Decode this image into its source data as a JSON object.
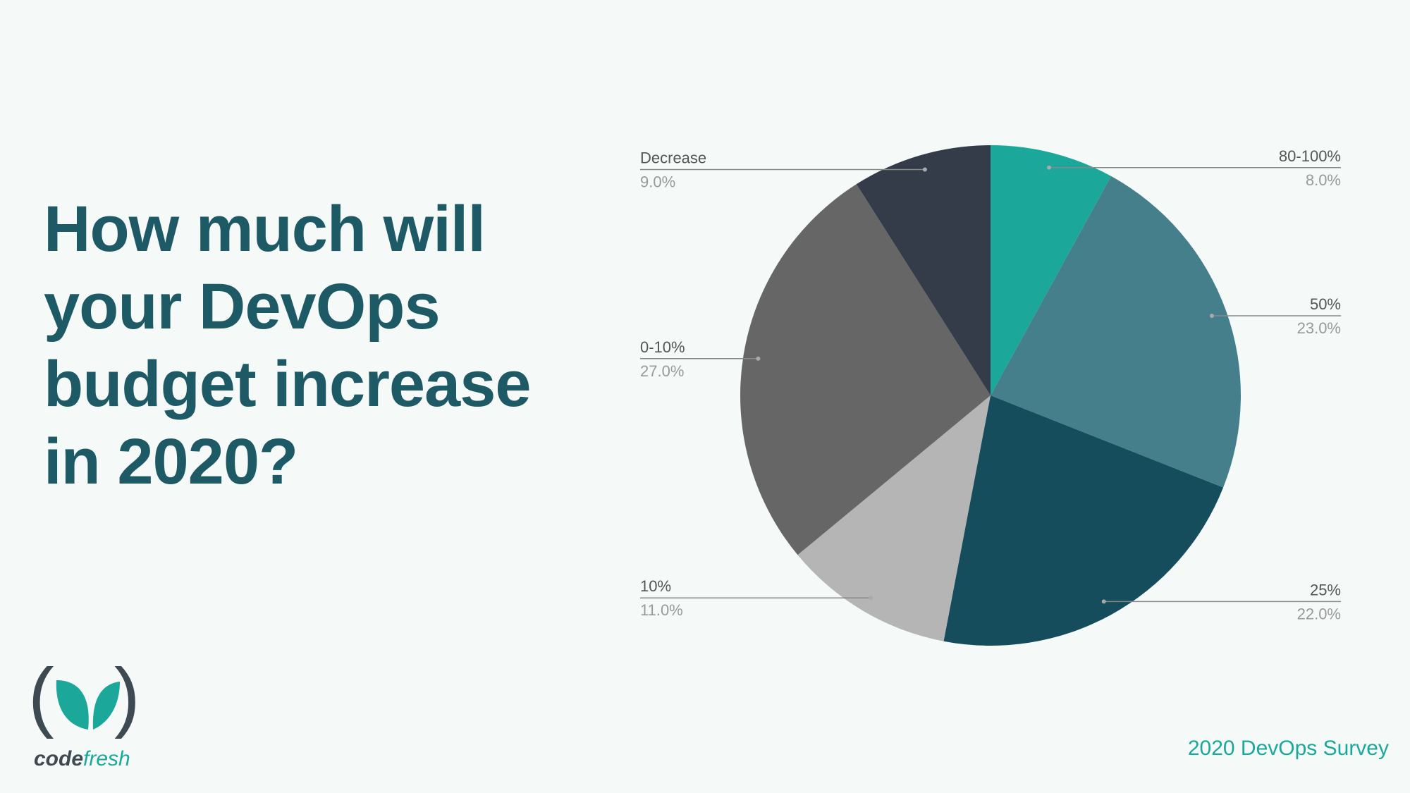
{
  "title": "How much will your DevOps budget increase in 2020?",
  "footer": "2020 DevOps Survey",
  "logo": {
    "part1": "code",
    "part2": "fresh"
  },
  "chart_data": {
    "type": "pie",
    "categories": [
      "80-100%",
      "50%",
      "25%",
      "10%",
      "0-10%",
      "Decrease"
    ],
    "values": [
      8,
      23,
      22,
      11,
      27,
      9
    ],
    "value_labels": [
      "8.0%",
      "23.0%",
      "22.0%",
      "11.0%",
      "27.0%",
      "9.0%"
    ],
    "colors": [
      "#1ba89a",
      "#467f8c",
      "#154d5c",
      "#b5b5b5",
      "#666666",
      "#333c48"
    ]
  }
}
